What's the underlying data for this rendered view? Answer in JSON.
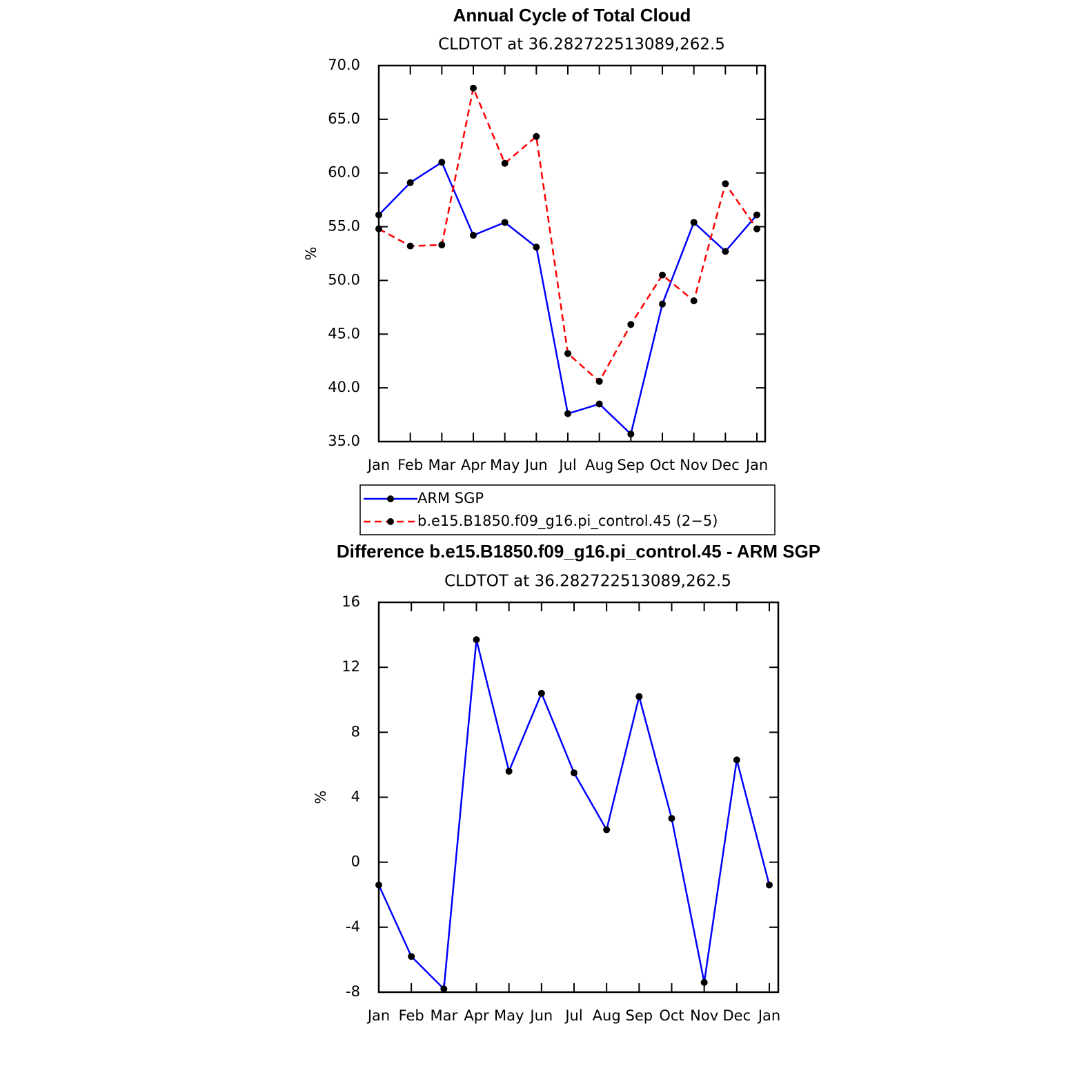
{
  "chart_data": [
    {
      "type": "line",
      "title": "Annual Cycle of Total Cloud",
      "subtitle": "CLDTOT at 36.282722513089,262.5",
      "ylabel": "%",
      "categories": [
        "Jan",
        "Feb",
        "Mar",
        "Apr",
        "May",
        "Jun",
        "Jul",
        "Aug",
        "Sep",
        "Oct",
        "Nov",
        "Dec",
        "Jan"
      ],
      "series": [
        {
          "name": "ARM SGP",
          "color": "#0000ff",
          "linestyle": "solid",
          "values": [
            56.1,
            59.1,
            61.0,
            54.2,
            55.4,
            53.1,
            37.6,
            38.5,
            35.7,
            47.8,
            55.4,
            52.7,
            56.1
          ]
        },
        {
          "name": "b.e15.B1850.f09_g16.pi_control.45 (2−5)",
          "color": "#ff0000",
          "linestyle": "dashed",
          "values": [
            54.8,
            53.2,
            53.3,
            67.9,
            60.9,
            63.4,
            43.2,
            40.6,
            45.9,
            50.5,
            48.1,
            59.0,
            54.8
          ]
        }
      ],
      "marker_color": "#000000",
      "ylim": [
        35,
        70
      ],
      "yticks": [
        {
          "value": 35,
          "label": "35.0"
        },
        {
          "value": 40,
          "label": "40.0"
        },
        {
          "value": 45,
          "label": "45.0"
        },
        {
          "value": 50,
          "label": "50.0"
        },
        {
          "value": 55,
          "label": "55.0"
        },
        {
          "value": 60,
          "label": "60.0"
        },
        {
          "value": 65,
          "label": "65.0"
        },
        {
          "value": 70,
          "label": "70.0"
        }
      ],
      "legend": "bottom"
    },
    {
      "type": "line",
      "title": "Difference b.e15.B1850.f09_g16.pi_control.45 - ARM SGP",
      "subtitle": "CLDTOT at 36.282722513089,262.5",
      "ylabel": "%",
      "categories": [
        "Jan",
        "Feb",
        "Mar",
        "Apr",
        "May",
        "Jun",
        "Jul",
        "Aug",
        "Sep",
        "Oct",
        "Nov",
        "Dec",
        "Jan"
      ],
      "series": [
        {
          "color": "#0000ff",
          "linestyle": "solid",
          "values": [
            -1.4,
            -5.8,
            -7.8,
            13.7,
            5.6,
            10.4,
            5.5,
            2.0,
            10.2,
            2.7,
            -7.4,
            6.3,
            -1.4
          ]
        }
      ],
      "marker_color": "#000000",
      "ylim": [
        -8,
        16
      ],
      "yticks": [
        -8,
        -4,
        0,
        4,
        8,
        12,
        16
      ]
    }
  ]
}
